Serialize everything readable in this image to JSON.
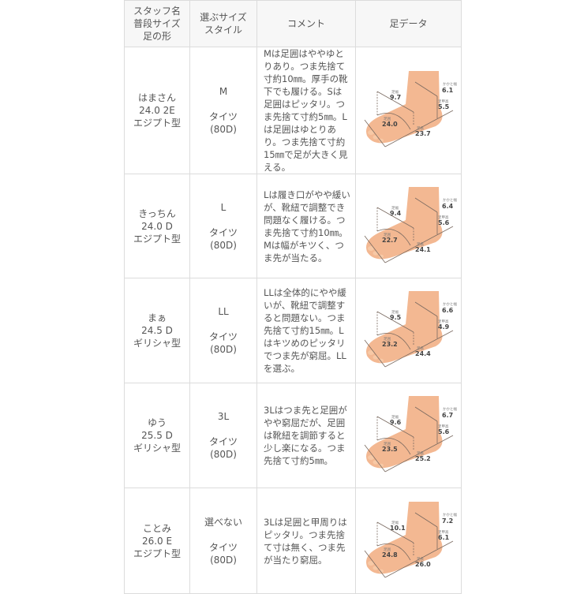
{
  "header": {
    "staff": "スタッフ名\n普段サイズ\n足の形",
    "size_style": "選ぶサイズ\nスタイル",
    "comment": "コメント",
    "foot_data": "足データ"
  },
  "foot_labels": {
    "width": "足幅",
    "girth": "足囲",
    "length": "足長",
    "heel": "かかと幅",
    "instep": "足甲高",
    "unit": "cm"
  },
  "colors": {
    "skin": "#f3b892",
    "line": "#7a6a60",
    "border": "#dcdcdc",
    "header_bg": "#f7f7f7"
  },
  "rows": [
    {
      "name": "はまさん",
      "usual": "24.0 2E",
      "shape": "エジプト型",
      "size": "M",
      "style": "タイツ\n(80D)",
      "comment": "Mは足囲はややゆとりあり。つま先捨て寸約10㎜。厚手の靴下でも履ける。Sは足囲はピッタリ。つま先捨て寸約5㎜。Lは足囲はゆとりあり。つま先捨て寸約15㎜で足が大きく見える。",
      "foot": {
        "width": "9.7",
        "girth": "24.0",
        "length": "23.7",
        "heel": "6.1",
        "instep": "5.5"
      }
    },
    {
      "name": "きっちん",
      "usual": "24.0 D",
      "shape": "エジプト型",
      "size": "L",
      "style": "タイツ\n(80D)",
      "comment": "Lは履き口がやや緩いが、靴紐で調整でき問題なく履ける。つま先捨て寸約10㎜。Mは幅がキツく、つま先が当たる。",
      "foot": {
        "width": "9.4",
        "girth": "22.7",
        "length": "24.1",
        "heel": "6.4",
        "instep": "5.6"
      }
    },
    {
      "name": "まぁ",
      "usual": "24.5 D",
      "shape": "ギリシャ型",
      "size": "LL",
      "style": "タイツ\n(80D)",
      "comment": "LLは全体的にやや緩いが、靴紐で調整すると問題ない。つま先捨て寸約15㎜。Lはキツめのピッタリでつま先が窮屈。LLを選ぶ。",
      "foot": {
        "width": "9.5",
        "girth": "23.2",
        "length": "24.4",
        "heel": "6.6",
        "instep": "4.9"
      }
    },
    {
      "name": "ゆう",
      "usual": "25.5 D",
      "shape": "ギリシャ型",
      "size": "3L",
      "style": "タイツ\n(80D)",
      "comment": "3Lはつま先と足囲がやや窮屈だが、足囲は靴紐を調節すると少し楽になる。つま先捨て寸約5㎜。",
      "foot": {
        "width": "9.6",
        "girth": "23.5",
        "length": "25.2",
        "heel": "6.7",
        "instep": "5.6"
      }
    },
    {
      "name": "ことみ",
      "usual": "26.0 E",
      "shape": "エジプト型",
      "size": "選べない",
      "style": "タイツ\n(80D)",
      "comment": "3Lは足囲と甲周りはピッタリ。つま先捨て寸は無く、つま先が当たり窮屈。",
      "foot": {
        "width": "10.1",
        "girth": "24.8",
        "length": "26.0",
        "heel": "7.2",
        "instep": "6.1"
      }
    }
  ]
}
